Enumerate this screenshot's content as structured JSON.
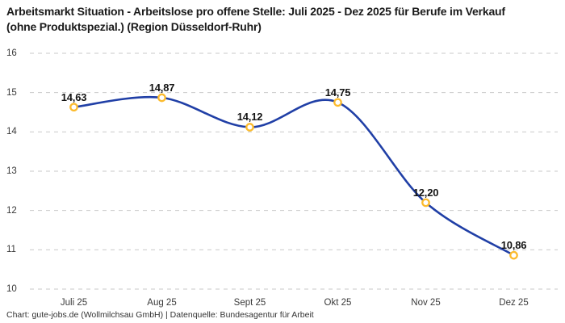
{
  "header": {
    "title": "Arbeitsmarkt Situation - Arbeitslose pro offene Stelle: Juli 2025 - Dez 2025 für Berufe im Verkauf (ohne Produktspezial.) (Region Düsseldorf-Ruhr)"
  },
  "footer": {
    "text": "Chart: gute-jobs.de (Wollmilchsau GmbH) | Datenquelle: Bundesagentur für Arbeit"
  },
  "chart_data": {
    "type": "line",
    "title": "Arbeitsmarkt Situation - Arbeitslose pro offene Stelle: Juli 2025 - Dez 2025 für Berufe im Verkauf (ohne Produktspezial.) (Region Düsseldorf-Ruhr)",
    "categories": [
      "Juli 25",
      "Aug 25",
      "Sept 25",
      "Okt 25",
      "Nov 25",
      "Dez 25"
    ],
    "values": [
      14.63,
      14.87,
      14.12,
      14.75,
      12.2,
      10.86
    ],
    "value_labels": [
      "14,63",
      "14,87",
      "14,12",
      "14,75",
      "12,20",
      "10,86"
    ],
    "xlabel": "",
    "ylabel": "",
    "ylim": [
      10,
      16
    ],
    "yticks": [
      "10",
      "11",
      "12",
      "13",
      "14",
      "15",
      "16"
    ],
    "grid": "horizontal-dashed",
    "legend": "none",
    "line_smooth": true,
    "colors": {
      "line": "#203fa6",
      "marker_ring": "#fcbb2d",
      "marker_fill": "#ffffff",
      "grid": "#c9c9c9",
      "background": "#ffffff"
    }
  }
}
